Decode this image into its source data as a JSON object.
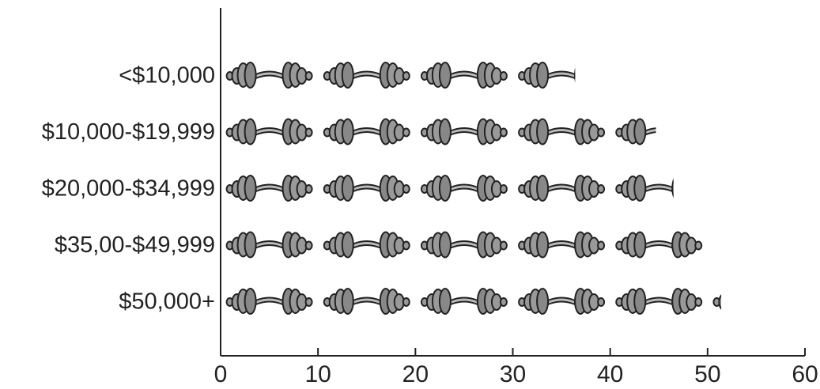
{
  "chart_data": {
    "type": "pictograph",
    "categories": [
      "<$10,000",
      "$10,000-$19,999",
      "$20,000-$34,999",
      "$35,00-$49,999",
      "$50,000+"
    ],
    "values": [
      36.4,
      44.7,
      46.5,
      50,
      51.4
    ],
    "icon_unit": 10,
    "xlim": [
      0,
      60
    ],
    "xticks": [
      0,
      10,
      20,
      30,
      40,
      50,
      60
    ]
  }
}
